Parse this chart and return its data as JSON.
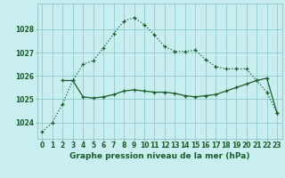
{
  "title": "Graphe pression niveau de la mer (hPa)",
  "bg_color": "#c8eef0",
  "grid_color": "#90cccc",
  "line_color": "#1a5c2a",
  "x_labels": [
    "0",
    "1",
    "2",
    "3",
    "4",
    "5",
    "6",
    "7",
    "8",
    "9",
    "10",
    "11",
    "12",
    "13",
    "14",
    "15",
    "16",
    "17",
    "18",
    "19",
    "20",
    "21",
    "22",
    "23"
  ],
  "series1_x": [
    0,
    1,
    2,
    3,
    4,
    5,
    6,
    7,
    8,
    9,
    10,
    11,
    12,
    13,
    14,
    15,
    16,
    17,
    18,
    19,
    20,
    21,
    22,
    23
  ],
  "series1_y": [
    1023.6,
    1024.0,
    1024.8,
    1025.8,
    1026.5,
    1026.65,
    1027.2,
    1027.8,
    1028.35,
    1028.5,
    1028.2,
    1027.75,
    1027.25,
    1027.05,
    1027.05,
    1027.1,
    1026.7,
    1026.4,
    1026.3,
    1026.3,
    1026.3,
    1025.8,
    1025.3,
    1024.4
  ],
  "series2_x": [
    2,
    3,
    4,
    5,
    6,
    7,
    8,
    9,
    10,
    11,
    12,
    13,
    14,
    15,
    16,
    17,
    18,
    19,
    20,
    21,
    22,
    23
  ],
  "series2_y": [
    1025.8,
    1025.8,
    1025.1,
    1025.05,
    1025.1,
    1025.2,
    1025.35,
    1025.4,
    1025.35,
    1025.3,
    1025.3,
    1025.25,
    1025.15,
    1025.1,
    1025.15,
    1025.2,
    1025.35,
    1025.5,
    1025.65,
    1025.8,
    1025.9,
    1024.4
  ],
  "ylim_min": 1023.3,
  "ylim_max": 1029.1,
  "yticks": [
    1024,
    1025,
    1026,
    1027,
    1028
  ],
  "title_fontsize": 6.5,
  "tick_fontsize": 5.5
}
